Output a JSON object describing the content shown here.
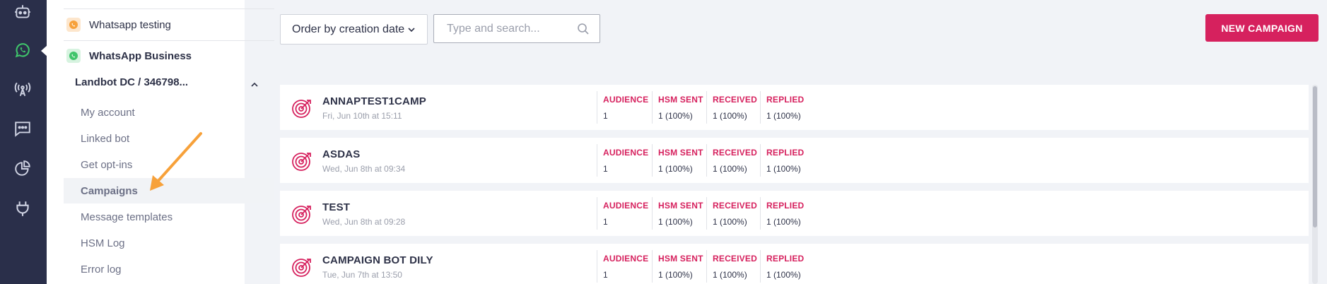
{
  "rail": {
    "icons": [
      "bot-icon",
      "whatsapp-icon",
      "broadcast-icon",
      "chat-icon",
      "analytics-icon",
      "plug-icon"
    ]
  },
  "sidebar": {
    "channels": [
      {
        "label": "Whatsapp testing",
        "bold": false
      },
      {
        "label": "WhatsApp Business",
        "bold": true
      }
    ],
    "account": "Landbot DC / 346798...",
    "items": [
      {
        "label": "My account"
      },
      {
        "label": "Linked bot"
      },
      {
        "label": "Get opt-ins"
      },
      {
        "label": "Campaigns",
        "active": true
      },
      {
        "label": "Message templates"
      },
      {
        "label": "HSM Log"
      },
      {
        "label": "Error log"
      }
    ]
  },
  "toolbar": {
    "order_label": "Order by creation date",
    "search_placeholder": "Type and search...",
    "new_campaign_label": "NEW CAMPAIGN"
  },
  "stat_labels": {
    "audience": "AUDIENCE",
    "hsm_sent": "HSM SENT",
    "received": "RECEIVED",
    "replied": "REPLIED"
  },
  "campaigns": [
    {
      "name": "ANNAPTEST1CAMP",
      "date": "Fri, Jun 10th at 15:11",
      "audience": "1",
      "hsm_sent": "1 (100%)",
      "received": "1 (100%)",
      "replied": "1 (100%)"
    },
    {
      "name": "ASDAS",
      "date": "Wed, Jun 8th at 09:34",
      "audience": "1",
      "hsm_sent": "1 (100%)",
      "received": "1 (100%)",
      "replied": "1 (100%)"
    },
    {
      "name": "TEST",
      "date": "Wed, Jun 8th at 09:28",
      "audience": "1",
      "hsm_sent": "1 (100%)",
      "received": "1 (100%)",
      "replied": "1 (100%)"
    },
    {
      "name": "CAMPAIGN BOT DILY",
      "date": "Tue, Jun 7th at 13:50",
      "audience": "1",
      "hsm_sent": "1 (100%)",
      "received": "1 (100%)",
      "replied": "1 (100%)"
    }
  ],
  "colors": {
    "rail": "#2a2f4a",
    "accent": "#d6215e",
    "whatsapp": "#3fc56b",
    "arrow": "#f7a13a"
  }
}
